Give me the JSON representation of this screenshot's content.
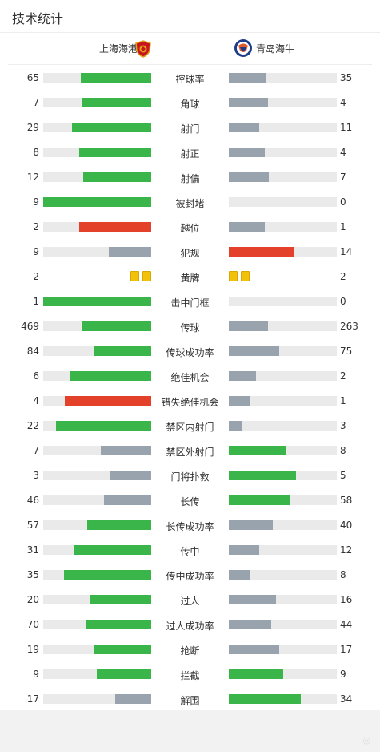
{
  "header": {
    "title": "技术统计"
  },
  "teams": {
    "home": {
      "name": "上海海港",
      "logo_icon": "shanghai-port-crest-icon"
    },
    "away": {
      "name": "青岛海牛",
      "logo_icon": "qingdao-hainiu-crest-icon"
    }
  },
  "colors": {
    "green": "#3ab54a",
    "red": "#e3412a",
    "gray": "#98a3ae",
    "track": "#eaeaea",
    "yellow": "#f2c20b"
  },
  "stats": [
    {
      "label": "控球率",
      "home": "65",
      "away": "35",
      "home_ratio": 0.65,
      "away_ratio": 0.35,
      "home_color": "green",
      "away_color": "gray"
    },
    {
      "label": "角球",
      "home": "7",
      "away": "4",
      "home_ratio": 0.64,
      "away_ratio": 0.36,
      "home_color": "green",
      "away_color": "gray"
    },
    {
      "label": "射门",
      "home": "29",
      "away": "11",
      "home_ratio": 0.73,
      "away_ratio": 0.28,
      "home_color": "green",
      "away_color": "gray"
    },
    {
      "label": "射正",
      "home": "8",
      "away": "4",
      "home_ratio": 0.67,
      "away_ratio": 0.33,
      "home_color": "green",
      "away_color": "gray"
    },
    {
      "label": "射偏",
      "home": "12",
      "away": "7",
      "home_ratio": 0.63,
      "away_ratio": 0.37,
      "home_color": "green",
      "away_color": "gray"
    },
    {
      "label": "被封堵",
      "home": "9",
      "away": "0",
      "home_ratio": 1.0,
      "away_ratio": 0.0,
      "home_color": "green",
      "away_color": "gray"
    },
    {
      "label": "越位",
      "home": "2",
      "away": "1",
      "home_ratio": 0.67,
      "away_ratio": 0.33,
      "home_color": "red",
      "away_color": "gray"
    },
    {
      "label": "犯规",
      "home": "9",
      "away": "14",
      "home_ratio": 0.39,
      "away_ratio": 0.61,
      "home_color": "gray",
      "away_color": "red"
    },
    {
      "label": "黄牌",
      "home": "2",
      "away": "2",
      "cards": true,
      "home_cards": 2,
      "away_cards": 2
    },
    {
      "label": "击中门框",
      "home": "1",
      "away": "0",
      "home_ratio": 1.0,
      "away_ratio": 0.0,
      "home_color": "green",
      "away_color": "gray"
    },
    {
      "label": "传球",
      "home": "469",
      "away": "263",
      "home_ratio": 0.64,
      "away_ratio": 0.36,
      "home_color": "green",
      "away_color": "gray"
    },
    {
      "label": "传球成功率",
      "home": "84",
      "away": "75",
      "home_ratio": 0.53,
      "away_ratio": 0.47,
      "home_color": "green",
      "away_color": "gray"
    },
    {
      "label": "绝佳机会",
      "home": "6",
      "away": "2",
      "home_ratio": 0.75,
      "away_ratio": 0.25,
      "home_color": "green",
      "away_color": "gray"
    },
    {
      "label": "错失绝佳机会",
      "home": "4",
      "away": "1",
      "home_ratio": 0.8,
      "away_ratio": 0.2,
      "home_color": "red",
      "away_color": "gray"
    },
    {
      "label": "禁区内射门",
      "home": "22",
      "away": "3",
      "home_ratio": 0.88,
      "away_ratio": 0.12,
      "home_color": "green",
      "away_color": "gray"
    },
    {
      "label": "禁区外射门",
      "home": "7",
      "away": "8",
      "home_ratio": 0.47,
      "away_ratio": 0.53,
      "home_color": "gray",
      "away_color": "green"
    },
    {
      "label": "门将扑救",
      "home": "3",
      "away": "5",
      "home_ratio": 0.38,
      "away_ratio": 0.62,
      "home_color": "gray",
      "away_color": "green"
    },
    {
      "label": "长传",
      "home": "46",
      "away": "58",
      "home_ratio": 0.44,
      "away_ratio": 0.56,
      "home_color": "gray",
      "away_color": "green"
    },
    {
      "label": "长传成功率",
      "home": "57",
      "away": "40",
      "home_ratio": 0.59,
      "away_ratio": 0.41,
      "home_color": "green",
      "away_color": "gray"
    },
    {
      "label": "传中",
      "home": "31",
      "away": "12",
      "home_ratio": 0.72,
      "away_ratio": 0.28,
      "home_color": "green",
      "away_color": "gray"
    },
    {
      "label": "传中成功率",
      "home": "35",
      "away": "8",
      "home_ratio": 0.81,
      "away_ratio": 0.19,
      "home_color": "green",
      "away_color": "gray"
    },
    {
      "label": "过人",
      "home": "20",
      "away": "16",
      "home_ratio": 0.56,
      "away_ratio": 0.44,
      "home_color": "green",
      "away_color": "gray"
    },
    {
      "label": "过人成功率",
      "home": "70",
      "away": "44",
      "home_ratio": 0.61,
      "away_ratio": 0.39,
      "home_color": "green",
      "away_color": "gray"
    },
    {
      "label": "抢断",
      "home": "19",
      "away": "17",
      "home_ratio": 0.53,
      "away_ratio": 0.47,
      "home_color": "green",
      "away_color": "gray"
    },
    {
      "label": "拦截",
      "home": "9",
      "away": "9",
      "home_ratio": 0.5,
      "away_ratio": 0.5,
      "home_color": "green",
      "away_color": "green"
    },
    {
      "label": "解围",
      "home": "17",
      "away": "34",
      "home_ratio": 0.33,
      "away_ratio": 0.67,
      "home_color": "gray",
      "away_color": "green"
    }
  ]
}
